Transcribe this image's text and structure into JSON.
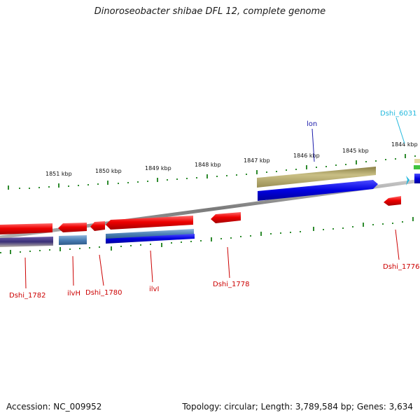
{
  "header": {
    "title": "Dinoroseobacter shibae DFL 12, complete genome"
  },
  "footer": {
    "accession": "Accession: NC_009952",
    "summary": "Topology: circular; Length: 3,789,584 bp; Genes: 3,634"
  },
  "ruler": {
    "labels": [
      "1851 kbp",
      "1850 kbp",
      "1849 kbp",
      "1848 kbp",
      "1847 kbp",
      "1846 kbp",
      "1845 kbp",
      "1844 kbp"
    ]
  },
  "genes": {
    "dshi_1782": "Dshi_1782",
    "ilvh": "ilvH",
    "dshi_1780": "Dshi_1780",
    "ilvi": "ilvI",
    "dshi_1778": "Dshi_1778",
    "dshi_1776": "Dshi_1776",
    "lon": "lon",
    "dshi_6031": "Dshi_6031"
  },
  "colors": {
    "gene_red": "#ee0000",
    "cds_blue": "#0000dd",
    "steel_blue": "#4a7fb5",
    "khaki": "#b8ad6e",
    "cyan_label": "#22b8dd",
    "lon_label": "#1a1aaa",
    "tick_green": "#2e8b2e",
    "backbone_gray": "#8c8c8c"
  }
}
